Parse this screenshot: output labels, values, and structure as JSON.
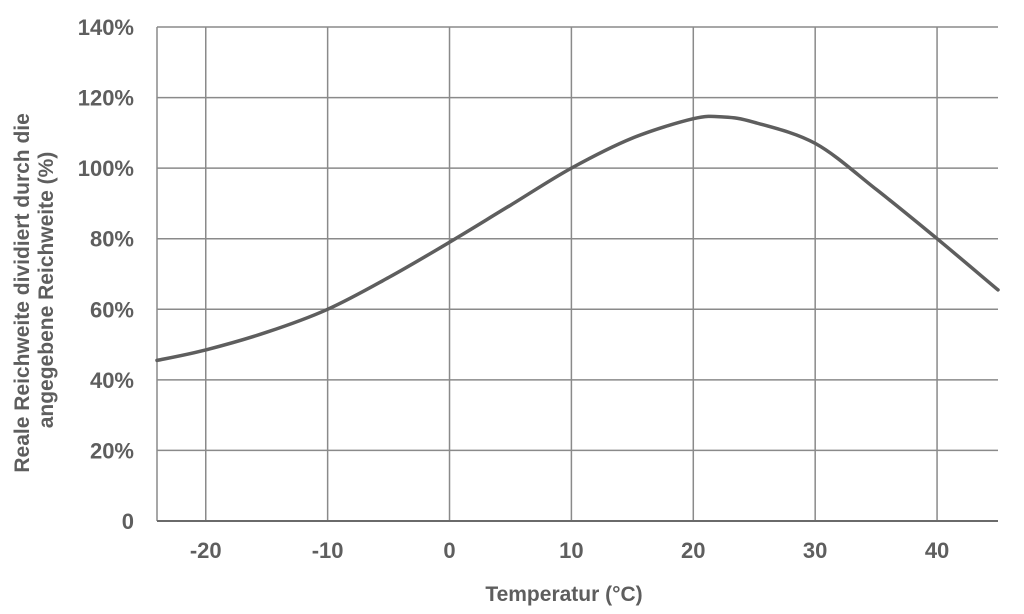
{
  "chart_data": {
    "type": "line",
    "title": "",
    "xlabel": "Temperatur (°C)",
    "ylabel_lines": [
      "Reale Reichweite dividiert durch die",
      "angegebene Reichweite (%)"
    ],
    "xlim": [
      -24,
      45
    ],
    "ylim": [
      0,
      140
    ],
    "x_ticks": [
      -20,
      -10,
      0,
      10,
      20,
      30,
      40
    ],
    "x_tick_labels": [
      "-20",
      "-10",
      "0",
      "10",
      "20",
      "30",
      "40"
    ],
    "y_ticks": [
      0,
      20,
      40,
      60,
      80,
      100,
      120,
      140
    ],
    "y_tick_labels": [
      "0",
      "20%",
      "40%",
      "60%",
      "80%",
      "100%",
      "120%",
      "140%"
    ],
    "grid": true,
    "line_color": "#5e5e5e",
    "grid_color": "#8a8a8a",
    "series": [
      {
        "x": [
          -24,
          -20,
          -15,
          -10,
          -5,
          0,
          5,
          10,
          15,
          20,
          22.5,
          25,
          30,
          35,
          40,
          45
        ],
        "values": [
          45.5,
          48.5,
          53.5,
          60,
          69,
          79,
          89.5,
          100,
          108.5,
          114,
          114.5,
          113,
          107,
          94,
          80,
          65.5
        ]
      }
    ]
  }
}
